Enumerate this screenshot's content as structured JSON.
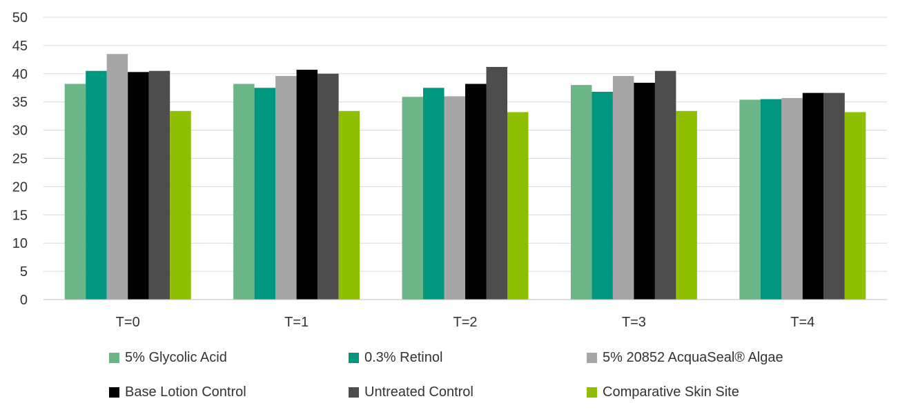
{
  "chart_data": {
    "type": "bar",
    "categories": [
      "T=0",
      "T=1",
      "T=2",
      "T=3",
      "T=4"
    ],
    "ylim": [
      0,
      50
    ],
    "yticks": [
      0,
      5,
      10,
      15,
      20,
      25,
      30,
      35,
      40,
      45,
      50
    ],
    "grid": true,
    "legend_position": "bottom",
    "series": [
      {
        "name": "5% Glycolic Acid",
        "color": "#6cb586",
        "values": [
          38.2,
          38.2,
          35.9,
          38.0,
          35.4
        ]
      },
      {
        "name": "0.3% Retinol",
        "color": "#00967f",
        "values": [
          40.5,
          37.5,
          37.5,
          36.8,
          35.5
        ]
      },
      {
        "name": "5% 20852 AcquaSeal® Algae",
        "color": "#a6a6a6",
        "values": [
          43.5,
          39.6,
          36.0,
          39.6,
          35.7
        ]
      },
      {
        "name": "Base Lotion Control",
        "color": "#000000",
        "values": [
          40.3,
          40.7,
          38.2,
          38.4,
          36.6
        ]
      },
      {
        "name": "Untreated Control",
        "color": "#4d4d4d",
        "values": [
          40.5,
          40.0,
          41.2,
          40.5,
          36.6
        ]
      },
      {
        "name": "Comparative Skin Site",
        "color": "#8ebf00",
        "values": [
          33.4,
          33.4,
          33.2,
          33.4,
          33.2
        ]
      }
    ]
  }
}
